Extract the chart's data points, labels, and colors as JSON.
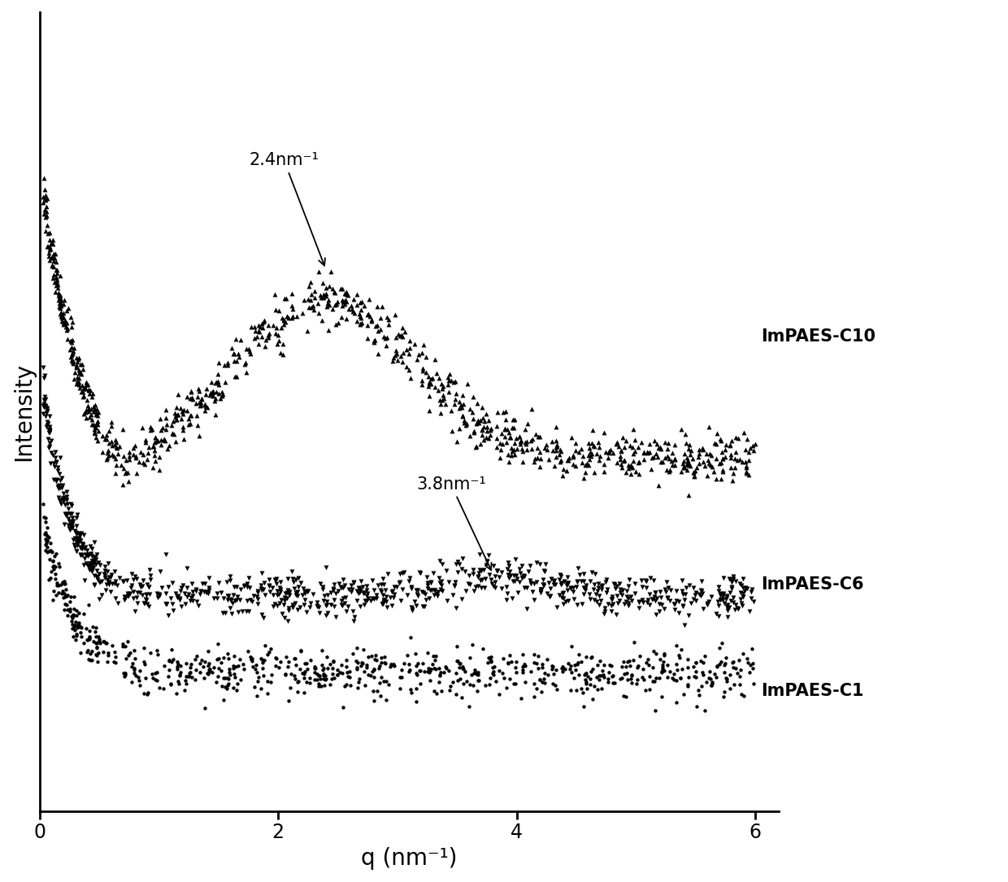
{
  "xlabel": "q (nm⁻¹)",
  "ylabel": "Intensity",
  "xlim": [
    0,
    6.2
  ],
  "background_color": "#ffffff",
  "label_c10": "ImPAES-C10",
  "label_c6": "ImPAES-C6",
  "label_c1": "ImPAES-C1",
  "annotation_c10_text": "2.4nm⁻¹",
  "annotation_c6_text": "3.8nm⁻¹",
  "color": "#000000",
  "xlabel_fontsize": 20,
  "ylabel_fontsize": 20,
  "tick_fontsize": 17,
  "label_fontsize": 15,
  "annotation_fontsize": 15,
  "seed": 42,
  "n_c10": 950,
  "n_c6": 950,
  "n_c1": 800,
  "marker_s_c10": 18,
  "marker_s_c6": 18,
  "marker_s_c1": 10
}
